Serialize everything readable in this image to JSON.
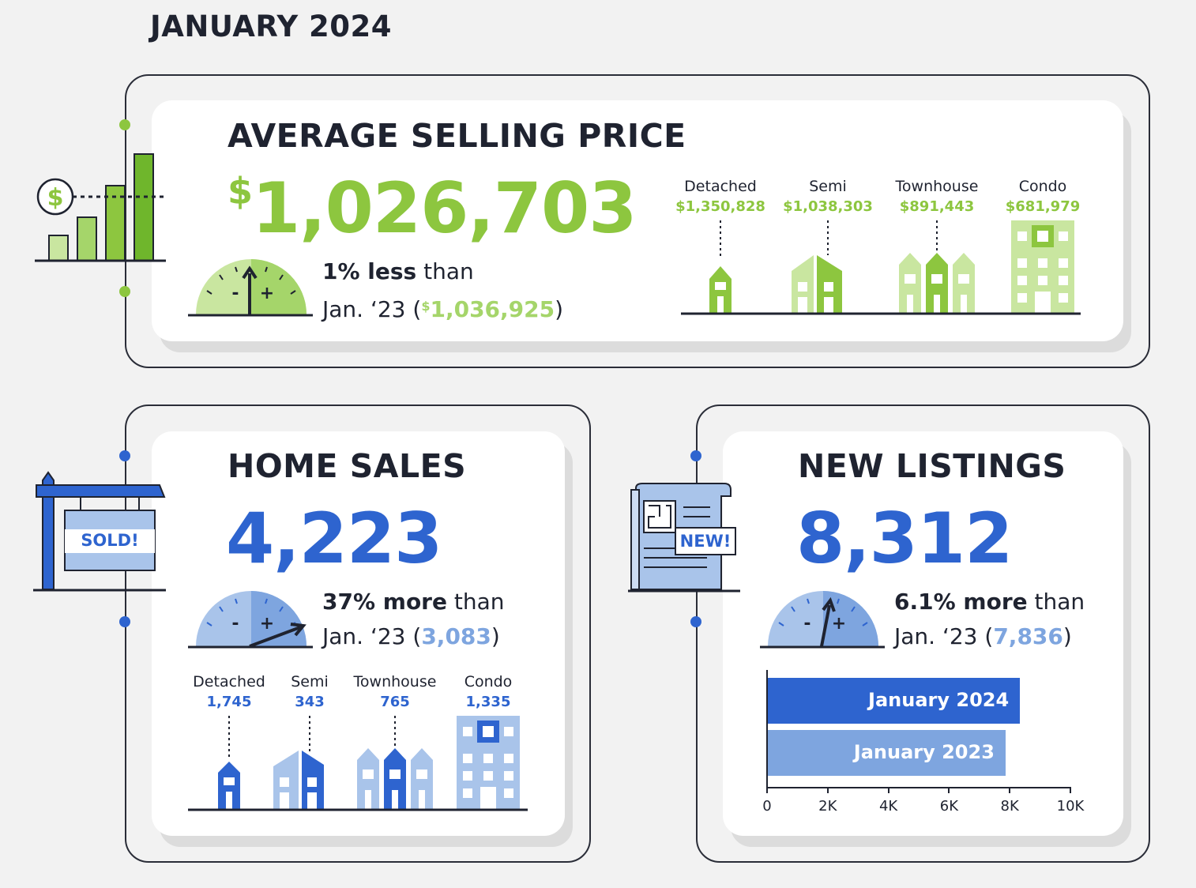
{
  "header": {
    "title": "JANUARY 2024"
  },
  "colors": {
    "green": "#8dc63f",
    "green_light": "#c9e6a0",
    "blue": "#2e64cf",
    "blue_light": "#a9c4ea",
    "dark": "#1f2330"
  },
  "avg_price": {
    "title": "AVERAGE SELLING PRICE",
    "currency": "$",
    "value": "1,026,703",
    "change_pct": "1% less",
    "than": "than",
    "prev_label": "Jan. ‘23 (",
    "prev_currency": "$",
    "prev_value": "1,036,925",
    "close": ")",
    "types": [
      {
        "label": "Detached",
        "value": "$1,350,828"
      },
      {
        "label": "Semi",
        "value": "$1,038,303"
      },
      {
        "label": "Townhouse",
        "value": "$891,443"
      },
      {
        "label": "Condo",
        "value": "$681,979"
      }
    ]
  },
  "home_sales": {
    "title": "HOME SALES",
    "value": "4,223",
    "change_pct": "37% more",
    "than": "than",
    "prev_label": "Jan. ‘23 (",
    "prev_value": "3,083",
    "close": ")",
    "sign_text": "SOLD!",
    "types": [
      {
        "label": "Detached",
        "value": "1,745"
      },
      {
        "label": "Semi",
        "value": "343"
      },
      {
        "label": "Townhouse",
        "value": "765"
      },
      {
        "label": "Condo",
        "value": "1,335"
      }
    ]
  },
  "new_listings": {
    "title": "NEW LISTINGS",
    "value": "8,312",
    "change_pct": "6.1% more",
    "than": "than",
    "prev_label": "Jan. ‘23 (",
    "prev_value": "7,836",
    "close": ")",
    "doc_badge": "NEW!",
    "chart_data": {
      "type": "bar",
      "orientation": "horizontal",
      "categories": [
        "January 2024",
        "January 2023"
      ],
      "values": [
        8312,
        7836
      ],
      "xlim": [
        0,
        10000
      ],
      "xticks": [
        "0",
        "2K",
        "4K",
        "6K",
        "8K",
        "10K"
      ]
    }
  }
}
